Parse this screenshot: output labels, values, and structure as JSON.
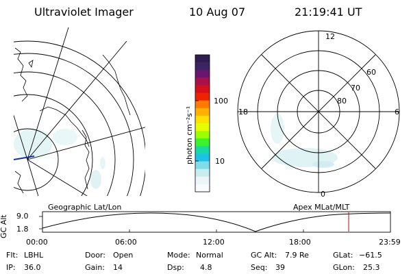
{
  "header": {
    "instrument": "Ultraviolet Imager",
    "date": "10 Aug 07",
    "time": "21:19:41 UT"
  },
  "left_panel": {
    "label": "Geographic Lat/Lon"
  },
  "right_panel": {
    "label": "Apex MLat/MLT",
    "mlt_labels": {
      "top": "12",
      "left": "18",
      "right": "6",
      "bottom": "0"
    },
    "lat_labels": [
      "60",
      "70",
      "80"
    ]
  },
  "colorbar": {
    "unit_label": "photon cm⁻²s⁻¹",
    "ticks": [
      "100",
      "10"
    ],
    "colors": [
      "#2e1c52",
      "#3b2463",
      "#6a1670",
      "#a8124a",
      "#d50f1b",
      "#ee2400",
      "#ff7a00",
      "#ffb000",
      "#ffe000",
      "#e6ff00",
      "#9cff00",
      "#3cf22a",
      "#16d9a5",
      "#1ec2e8",
      "#7fdcea",
      "#c9ecee",
      "#eaf6f7",
      "#f7fbfb"
    ]
  },
  "timeline": {
    "y_label": "GC Alt",
    "y_max": "9.0",
    "y_min": "1.8",
    "x_ticks": [
      "00:00",
      "06:00",
      "12:00",
      "18:00",
      "23:59"
    ],
    "current_time_fraction": 0.88
  },
  "status": {
    "flt_label": "Flt:",
    "flt_value": "LBHL",
    "door_label": "Door:",
    "door_value": "Open",
    "mode_label": "Mode:",
    "mode_value": "Normal",
    "gcalt_label": "GC Alt:",
    "gcalt_value": "7.9 Re",
    "glat_label": "GLat:",
    "glat_value": "−61.5",
    "ip_label": "IP:",
    "ip_value": "36.0",
    "gain_label": "Gain:",
    "gain_value": "14",
    "dsp_label": "Dsp:",
    "dsp_value": "4.8",
    "seq_label": "Seq:",
    "seq_value": "39",
    "glon_label": "GLon:",
    "glon_value": "25.3"
  }
}
